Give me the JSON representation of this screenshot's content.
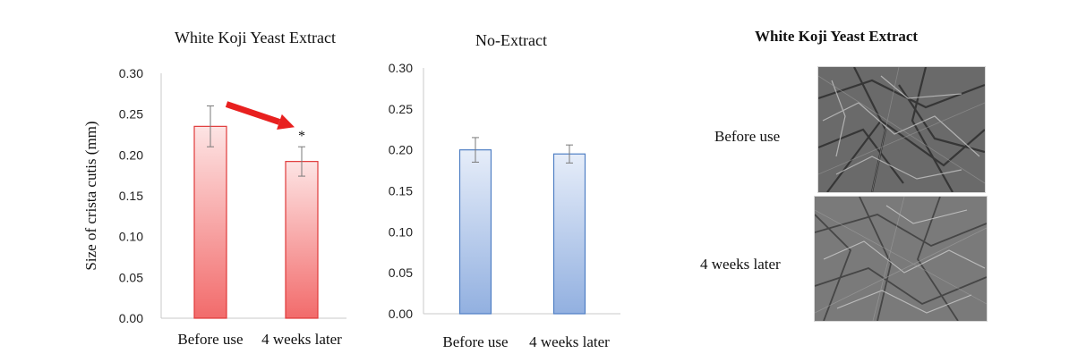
{
  "chart_data": [
    {
      "type": "bar",
      "title": "White  Koji  Yeast Extract",
      "ylabel": "Size of crista cutis (mm)",
      "categories": [
        "Before use",
        "4 weeks later"
      ],
      "values": [
        0.235,
        0.192
      ],
      "error": [
        0.025,
        0.018
      ],
      "significance": [
        "",
        "*"
      ],
      "trend_arrow": true,
      "ylim": [
        0,
        0.3
      ],
      "yticks": [
        "0.00",
        "0.05",
        "0.10",
        "0.15",
        "0.20",
        "0.25",
        "0.30"
      ],
      "bar_color": "#f26b6b",
      "bar_color_light": "#fde4e4",
      "arrow_color": "#e8201f",
      "grid": false
    },
    {
      "type": "bar",
      "title": "No-Extract",
      "categories": [
        "Before use",
        "4 weeks later"
      ],
      "values": [
        0.2,
        0.195
      ],
      "error": [
        0.015,
        0.011
      ],
      "ylim": [
        0,
        0.3
      ],
      "yticks": [
        "0.00",
        "0.05",
        "0.10",
        "0.15",
        "0.20",
        "0.25",
        "0.30"
      ],
      "bar_color": "#92b0e0",
      "bar_color_light": "#e6edf9",
      "bar_border": "#4f7fc4",
      "grid": false
    }
  ],
  "image_panel": {
    "title": "White Koji Yeast Extract",
    "rows": [
      {
        "label": "Before use",
        "image_icon": "skin-surface-photo"
      },
      {
        "label": "4 weeks later",
        "image_icon": "skin-surface-photo"
      }
    ]
  }
}
